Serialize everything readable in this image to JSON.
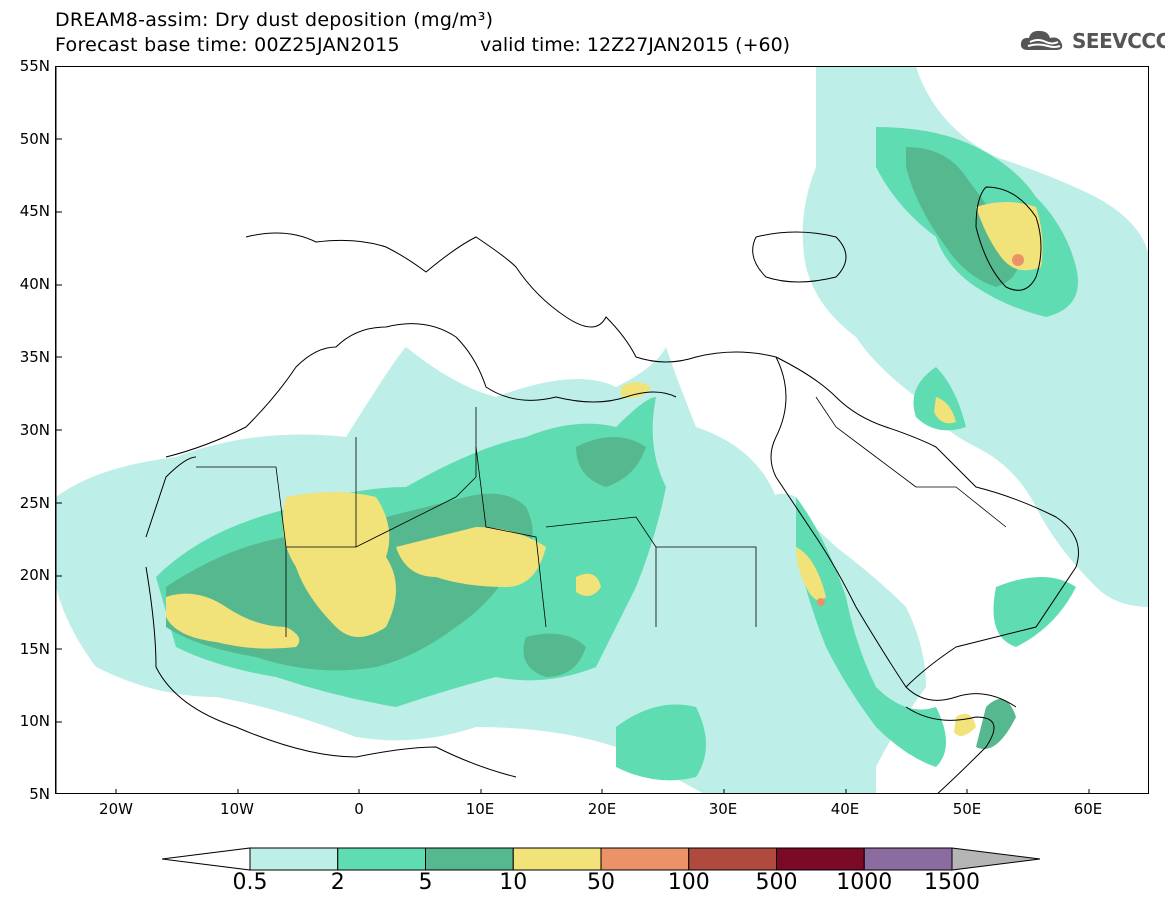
{
  "title": {
    "line1": "DREAM8-assim: Dry dust deposition (mg/m³)",
    "line2": "Forecast base time: 00Z25JAN2015",
    "valid": "valid time: 12Z27JAN2015 (+60)"
  },
  "logo": {
    "text": "SEEVCCC",
    "icon": "cloud-logo-icon"
  },
  "axes": {
    "lat_labels": [
      "55N",
      "50N",
      "45N",
      "40N",
      "35N",
      "30N",
      "25N",
      "20N",
      "15N",
      "10N",
      "5N"
    ],
    "lon_labels": [
      "20W",
      "10W",
      "0",
      "10E",
      "20E",
      "30E",
      "40E",
      "50E",
      "60E"
    ],
    "lat_range": [
      5,
      55
    ],
    "lon_range": [
      -25,
      65
    ]
  },
  "colorbar": {
    "labels": [
      "0.5",
      "2",
      "5",
      "10",
      "50",
      "100",
      "500",
      "1000",
      "1500"
    ],
    "colors": [
      "#bdeee8",
      "#5fdcb2",
      "#55b88e",
      "#f2e27a",
      "#ec9268",
      "#b04a3e",
      "#7a0a26",
      "#8c6ca0"
    ],
    "under_color": "#ffffff",
    "over_color": "#b5b5b5"
  }
}
